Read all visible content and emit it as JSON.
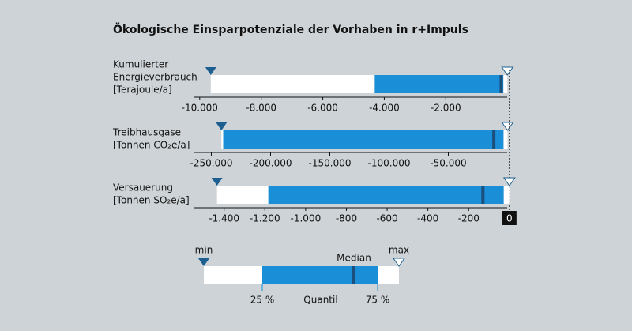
{
  "chart_data": {
    "type": "range",
    "title": "Ökologische Einsparpotenziale der Vorhaben in r+Impuls",
    "color": "#1a8fd8",
    "median_color": "#1b4f7c",
    "min_color": "#1d5f90",
    "series": [
      {
        "label_lines": [
          "Kumulierter",
          "Energieverbrauch",
          "[Terajoule/a]"
        ],
        "xlim": [
          -10200,
          200
        ],
        "xticks": [
          {
            "value": -10000,
            "label": "-10.000"
          },
          {
            "value": -8000,
            "label": "-8.000"
          },
          {
            "value": -6000,
            "label": "-6.000"
          },
          {
            "value": -4000,
            "label": "-4.000"
          },
          {
            "value": -2000,
            "label": "-2.000"
          }
        ],
        "min": -9640,
        "q25": -4310,
        "median": -200,
        "q75": -130,
        "max": 0
      },
      {
        "label_lines": [
          "Treibhausgase",
          "[Tonnen CO₂e/a]"
        ],
        "xlim": [
          -265000,
          5000
        ],
        "xticks": [
          {
            "value": -250000,
            "label": "-250.000"
          },
          {
            "value": -200000,
            "label": "-200.000"
          },
          {
            "value": -150000,
            "label": "-150.000"
          },
          {
            "value": -100000,
            "label": "-100.000"
          },
          {
            "value": -50000,
            "label": "-50.000"
          }
        ],
        "min": -241500,
        "q25": -240000,
        "median": -11600,
        "q75": -3400,
        "max": 0
      },
      {
        "label_lines": [
          "Versauerung",
          "[Tonnen SO₂e/a]"
        ],
        "xlim": [
          -1550,
          20
        ],
        "xticks": [
          {
            "value": -1400,
            "label": "-1.400"
          },
          {
            "value": -1200,
            "label": "-1.200"
          },
          {
            "value": -1000,
            "label": "-1.000"
          },
          {
            "value": -800,
            "label": "-800"
          },
          {
            "value": -600,
            "label": "-600"
          },
          {
            "value": -400,
            "label": "-400"
          },
          {
            "value": -200,
            "label": "-200"
          },
          0
        ],
        "min": -1435,
        "q25": -1183,
        "median": -130,
        "q75": -28,
        "max": 0
      }
    ],
    "legend": {
      "min": "min",
      "max": "max",
      "median": "Median",
      "q25": "25 %",
      "q75": "75 %",
      "quantile": "Quantil"
    }
  }
}
